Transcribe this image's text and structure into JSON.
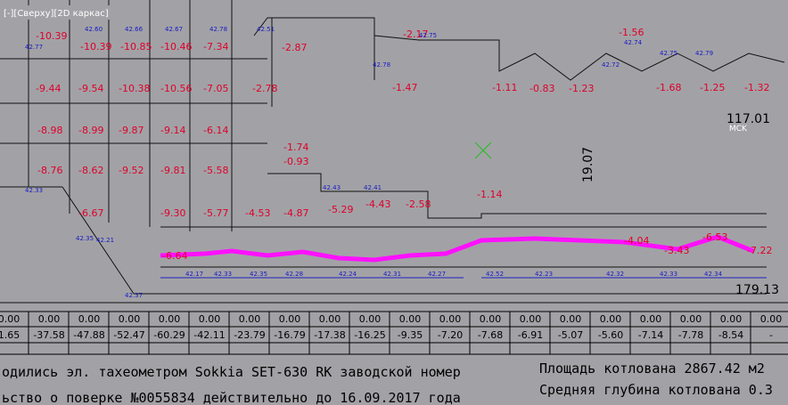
{
  "viewport_label": "[-][Сверху][2D каркас]",
  "cell_values": [
    "-10.39",
    "-10.39",
    "-10.85",
    "-10.46",
    "-7.34",
    "-2.87",
    "-9.44",
    "-9.54",
    "-10.38",
    "-10.56",
    "-7.05",
    "-2.78",
    "-8.98",
    "-8.99",
    "-9.87",
    "-9.14",
    "-6.14",
    "-1.74",
    "-0.93",
    "-8.76",
    "-8.62",
    "-9.52",
    "-9.81",
    "-5.58",
    "-6.67",
    "-9.30",
    "-5.77",
    "-4.53",
    "-4.87",
    "-5.29",
    "-4.43",
    "-2.58",
    "-1.14",
    "-2.17",
    "-1.56",
    "-1.47",
    "-1.11",
    "-0.83",
    "-1.23",
    "-1.68",
    "-1.25",
    "-1.32",
    "-6.64",
    "-7.22",
    "-6.53",
    "-4.04",
    "-3.43"
  ],
  "elevations": [
    "42.77",
    "42.60",
    "42.66",
    "42.67",
    "42.78",
    "42.51",
    "42.33",
    "42.21",
    "42.35",
    "42.43",
    "42.41",
    "42.78",
    "42.75",
    "42.72",
    "42.74",
    "42.75",
    "42.79",
    "42.17",
    "42.33",
    "42.35",
    "42.28",
    "42.24",
    "42.31",
    "42.27",
    "42.52",
    "42.23",
    "42.32",
    "42.33",
    "42.34",
    "42.37"
  ],
  "dimensions": [
    "117.01",
    "19.07",
    "179.13",
    "MCK"
  ],
  "table": {
    "rows": [
      [
        "0.00",
        "0.00",
        "0.00",
        "0.00",
        "0.00",
        "0.00",
        "0.00",
        "0.00",
        "0.00",
        "0.00",
        "0.00",
        "0.00",
        "0.00",
        "0.00",
        "0.00",
        "0.00",
        "0.00",
        "0.00",
        "0.00",
        "0.00"
      ],
      [
        "1.65",
        "-37.58",
        "-47.88",
        "-52.47",
        "-60.29",
        "-42.11",
        "-23.79",
        "-16.79",
        "-17.38",
        "-16.25",
        "-9.35",
        "-7.20",
        "-7.68",
        "-6.91",
        "-5.07",
        "-5.60",
        "-7.14",
        "-7.78",
        "-8.54",
        "-"
      ]
    ]
  },
  "notes": [
    "одились эл. тахеометром Sokkia SET-630 RK заводской номер",
    "ьство о поверке №0055834 действительно до 16.09.2017 года",
    "Площадь котлована 2867.42 м2",
    "Средняя глубина котлована 0.3"
  ]
}
